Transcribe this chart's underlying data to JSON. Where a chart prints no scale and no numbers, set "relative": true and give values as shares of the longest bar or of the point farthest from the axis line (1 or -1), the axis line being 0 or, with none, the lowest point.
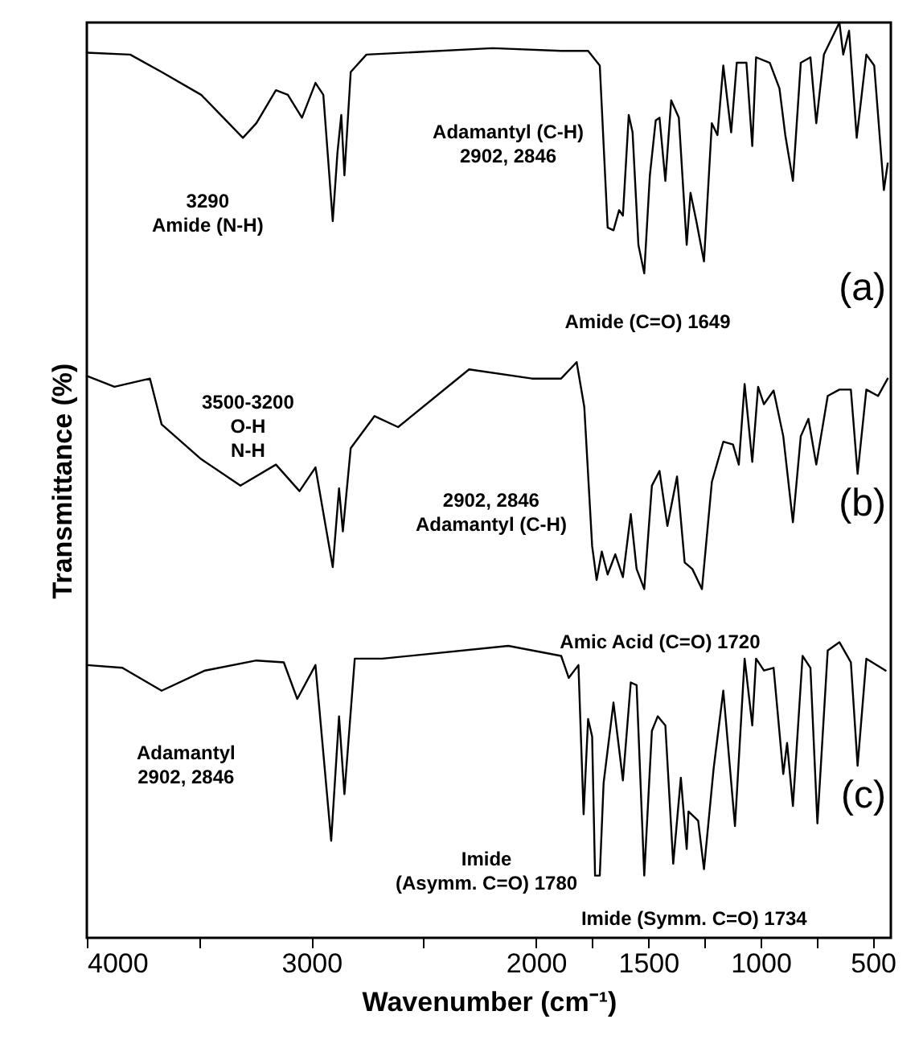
{
  "chart_data": {
    "type": "line",
    "relative": true,
    "xlabel": "Wavenumber (cm⁻¹)",
    "ylabel": "Transmittance (%)",
    "legend": false,
    "xlim": [
      4000,
      420
    ],
    "xticks": [
      4000,
      {
        "value": 3500,
        "label": null
      },
      3000,
      {
        "value": 2500,
        "label": null
      },
      2000,
      {
        "value": 1750,
        "label": null
      },
      1500,
      {
        "value": 1250,
        "label": null
      },
      1000,
      {
        "value": 750,
        "label": null
      },
      500
    ],
    "series": [
      {
        "name": "(a)",
        "color": "#000000",
        "x": [
          4000,
          3807,
          3667,
          3491,
          3305,
          3245,
          3158,
          3105,
          3042,
          2982,
          2947,
          2905,
          2884,
          2867,
          2853,
          2825,
          2755,
          2193,
          1888,
          1768,
          1716,
          1681,
          1655,
          1630,
          1613,
          1587,
          1570,
          1544,
          1518,
          1493,
          1467,
          1450,
          1424,
          1398,
          1364,
          1329,
          1312,
          1286,
          1252,
          1217,
          1192,
          1166,
          1131,
          1106,
          1063,
          1037,
          1020,
          959,
          916,
          890,
          856,
          821,
          778,
          752,
          718,
          649,
          632,
          606,
          572,
          529,
          494,
          451,
          434
        ],
        "values": [
          0.967,
          0.965,
          0.946,
          0.921,
          0.874,
          0.89,
          0.926,
          0.921,
          0.896,
          0.934,
          0.921,
          0.783,
          0.858,
          0.899,
          0.833,
          0.946,
          0.965,
          0.972,
          0.969,
          0.969,
          0.953,
          0.776,
          0.773,
          0.795,
          0.789,
          0.899,
          0.88,
          0.757,
          0.726,
          0.833,
          0.893,
          0.896,
          0.827,
          0.915,
          0.896,
          0.757,
          0.814,
          0.783,
          0.739,
          0.89,
          0.877,
          0.953,
          0.88,
          0.956,
          0.956,
          0.865,
          0.962,
          0.956,
          0.928,
          0.877,
          0.827,
          0.956,
          0.962,
          0.89,
          0.965,
          1,
          0.965,
          0.991,
          0.874,
          0.965,
          0.953,
          0.817,
          0.846
        ]
      },
      {
        "name": "(b)",
        "color": "#000000",
        "x": [
          4000,
          3877,
          3719,
          3667,
          3491,
          3316,
          3158,
          3053,
          2982,
          2905,
          2877,
          2860,
          2825,
          2719,
          2614,
          2298,
          2018,
          1888,
          1819,
          1785,
          1750,
          1730,
          1707,
          1681,
          1647,
          1613,
          1578,
          1552,
          1518,
          1484,
          1450,
          1415,
          1372,
          1338,
          1304,
          1261,
          1217,
          1166,
          1123,
          1097,
          1071,
          1037,
          1011,
          985,
          942,
          899,
          856,
          821,
          787,
          752,
          701,
          649,
          598,
          568,
          529,
          477,
          434
        ],
        "values": [
          0.614,
          0.602,
          0.611,
          0.561,
          0.523,
          0.494,
          0.517,
          0.488,
          0.514,
          0.405,
          0.491,
          0.444,
          0.535,
          0.57,
          0.558,
          0.621,
          0.611,
          0.611,
          0.629,
          0.58,
          0.428,
          0.391,
          0.422,
          0.397,
          0.419,
          0.394,
          0.463,
          0.403,
          0.381,
          0.494,
          0.51,
          0.45,
          0.504,
          0.41,
          0.403,
          0.381,
          0.498,
          0.542,
          0.539,
          0.517,
          0.605,
          0.52,
          0.602,
          0.583,
          0.598,
          0.548,
          0.454,
          0.548,
          0.567,
          0.517,
          0.592,
          0.599,
          0.599,
          0.507,
          0.599,
          0.592,
          0.611
        ]
      },
      {
        "name": "(c)",
        "color": "#000000",
        "x": [
          4000,
          3842,
          3667,
          3474,
          3245,
          3123,
          3063,
          2982,
          2912,
          2877,
          2853,
          2807,
          2684,
          2123,
          1888,
          1854,
          1811,
          1788,
          1768,
          1750,
          1737,
          1716,
          1699,
          1655,
          1613,
          1578,
          1552,
          1518,
          1484,
          1458,
          1424,
          1389,
          1355,
          1329,
          1321,
          1278,
          1252,
          1209,
          1166,
          1114,
          1071,
          1037,
          1020,
          985,
          942,
          899,
          882,
          856,
          813,
          778,
          747,
          701,
          649,
          598,
          568,
          529,
          443
        ],
        "values": [
          0.298,
          0.295,
          0.27,
          0.292,
          0.303,
          0.301,
          0.261,
          0.298,
          0.106,
          0.242,
          0.157,
          0.305,
          0.305,
          0.319,
          0.308,
          0.284,
          0.298,
          0.135,
          0.239,
          0.22,
          0.068,
          0.068,
          0.169,
          0.257,
          0.172,
          0.279,
          0.276,
          0.068,
          0.226,
          0.242,
          0.232,
          0.081,
          0.175,
          0.097,
          0.138,
          0.128,
          0.075,
          0.185,
          0.27,
          0.122,
          0.305,
          0.232,
          0.305,
          0.292,
          0.295,
          0.179,
          0.213,
          0.144,
          0.308,
          0.295,
          0.125,
          0.314,
          0.323,
          0.301,
          0.188,
          0.305,
          0.292
        ]
      }
    ],
    "annotations": [
      "3290\nAmide (N-H)",
      "Adamantyl (C-H)\n2902, 2846",
      "Amide (C=O) 1649",
      "3500-3200\nO-H\nN-H",
      "2902, 2846\nAdamantyl (C-H)",
      "Amic Acid (C=O) 1720",
      "Adamantyl\n2902, 2846",
      "Imide\n(Asymm. C=O) 1780",
      "Imide (Symm. C=O) 1734"
    ]
  }
}
